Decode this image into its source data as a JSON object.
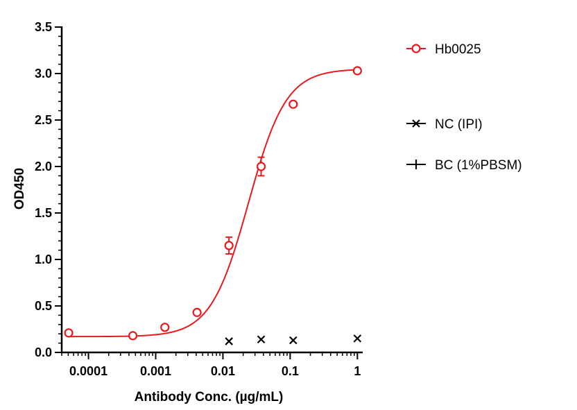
{
  "chart_data": {
    "type": "scatter",
    "title": "",
    "xlabel": "Antibody Conc. (µg/mL)",
    "ylabel": "OD450",
    "x_scale": "log",
    "xlim": [
      4e-05,
      1.2
    ],
    "ylim": [
      0,
      3.5
    ],
    "x_ticks": [
      {
        "value": 0.0001,
        "label": "0.0001"
      },
      {
        "value": 0.001,
        "label": "0.001"
      },
      {
        "value": 0.01,
        "label": "0.01"
      },
      {
        "value": 0.1,
        "label": "0.1"
      },
      {
        "value": 1,
        "label": "1"
      }
    ],
    "y_ticks": [
      {
        "value": 0,
        "label": "0.0"
      },
      {
        "value": 0.5,
        "label": "0.5"
      },
      {
        "value": 1.0,
        "label": "1.0"
      },
      {
        "value": 1.5,
        "label": "1.5"
      },
      {
        "value": 2.0,
        "label": "2.0"
      },
      {
        "value": 2.5,
        "label": "2.5"
      },
      {
        "value": 3.0,
        "label": "3.0"
      },
      {
        "value": 3.5,
        "label": "3.5"
      }
    ],
    "grid": false,
    "legend_position": "right",
    "series": [
      {
        "name": "Hb0025",
        "marker": "circle",
        "color": "#e8191c",
        "fit_curve": true,
        "x": [
          5.08e-05,
          0.000457,
          0.00137,
          0.00412,
          0.0123,
          0.037,
          0.111,
          1.0
        ],
        "y": [
          0.21,
          0.18,
          0.27,
          0.43,
          1.15,
          2.0,
          2.67,
          3.03
        ],
        "error": [
          0,
          0,
          0,
          0,
          0.09,
          0.1,
          0,
          0
        ],
        "fit": {
          "bottom": 0.17,
          "top": 3.05,
          "ec50": 0.024,
          "hill": 1.55
        }
      },
      {
        "name": "NC (IPI)",
        "marker": "x",
        "color": "#000000",
        "x": [
          0.0123,
          0.037,
          0.111,
          1.0
        ],
        "y": [
          0.12,
          0.14,
          0.13,
          0.15
        ]
      },
      {
        "name": "BC (1%PBSM)",
        "marker": "plus",
        "color": "#000000",
        "x": [],
        "y": []
      }
    ]
  }
}
